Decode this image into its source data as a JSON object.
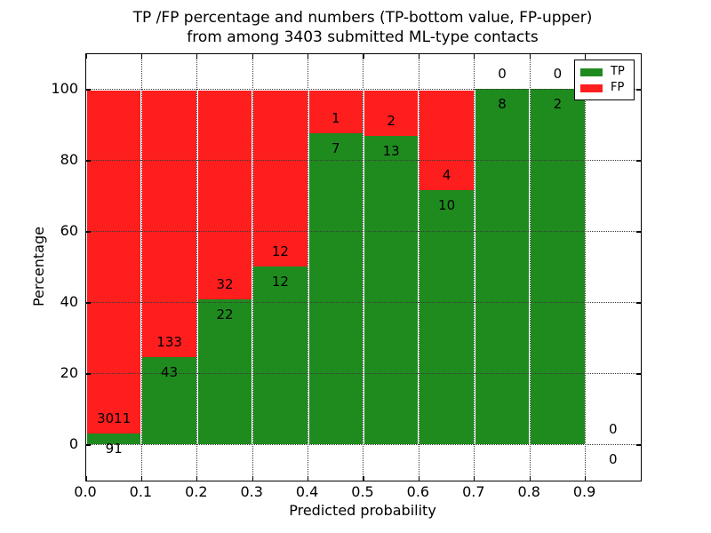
{
  "chart_data": {
    "type": "bar",
    "stacked": true,
    "normalized_to_percent": true,
    "title_line1": "TP /FP percentage and numbers (TP-bottom value, FP-upper)",
    "title_line2": "from among 3403 submitted ML-type contacts",
    "xlabel": "Predicted probability",
    "ylabel": "Percentage",
    "xlim": [
      0.0,
      1.0
    ],
    "ylim": [
      -10,
      110
    ],
    "x_tick_labels": [
      "0.0",
      "0.1",
      "0.2",
      "0.3",
      "0.4",
      "0.5",
      "0.6",
      "0.7",
      "0.8",
      "0.9"
    ],
    "y_tick_labels": [
      "0",
      "20",
      "40",
      "60",
      "80",
      "100"
    ],
    "grid": "dotted",
    "total_contacts": 3403,
    "legend": {
      "position": "upper-right",
      "entries": [
        {
          "label": "TP",
          "color": "#1f8b1f"
        },
        {
          "label": "FP",
          "color": "#ff1e1e"
        }
      ]
    },
    "bins": [
      {
        "range": "0.0-0.1",
        "tp": 91,
        "fp": 3011
      },
      {
        "range": "0.1-0.2",
        "tp": 43,
        "fp": 133
      },
      {
        "range": "0.2-0.3",
        "tp": 22,
        "fp": 32
      },
      {
        "range": "0.3-0.4",
        "tp": 12,
        "fp": 12
      },
      {
        "range": "0.4-0.5",
        "tp": 7,
        "fp": 1
      },
      {
        "range": "0.5-0.6",
        "tp": 13,
        "fp": 2
      },
      {
        "range": "0.6-0.7",
        "tp": 10,
        "fp": 4
      },
      {
        "range": "0.7-0.8",
        "tp": 8,
        "fp": 0
      },
      {
        "range": "0.8-0.9",
        "tp": 2,
        "fp": 0
      },
      {
        "range": "0.9-1.0",
        "tp": 0,
        "fp": 0
      }
    ],
    "colors": {
      "tp": "#1f8b1f",
      "fp": "#ff1e1e",
      "grid": "#3a3a3a",
      "text": "#000000",
      "bar_edge": "#ffffff"
    }
  }
}
